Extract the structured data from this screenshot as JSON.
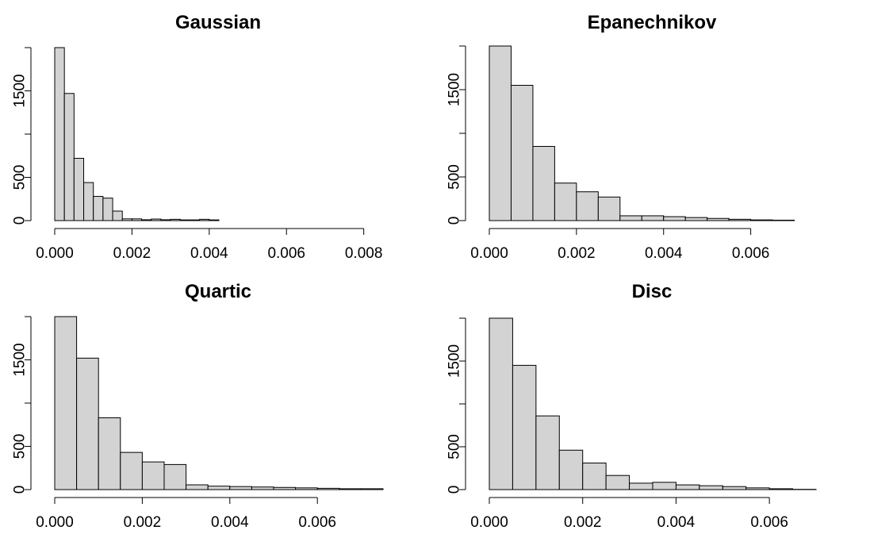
{
  "chart_data": [
    {
      "type": "bar",
      "title": "Gaussian",
      "xlabel": "",
      "ylabel": "",
      "bin_width": 0.00025,
      "xlim": [
        0,
        0.0085
      ],
      "ylim": [
        0,
        2000
      ],
      "x_ticks": [
        0,
        0.002,
        0.004,
        0.006,
        0.008
      ],
      "x_tick_labels": [
        "0.000",
        "0.002",
        "0.004",
        "0.006",
        "0.008"
      ],
      "y_ticks": [
        0,
        500,
        1000,
        1500,
        2000
      ],
      "y_tick_labels": [
        "0",
        "500",
        "",
        "1500",
        ""
      ],
      "values": [
        2000,
        1470,
        720,
        440,
        280,
        260,
        110,
        20,
        20,
        10,
        18,
        10,
        15,
        8,
        8,
        15,
        8
      ]
    },
    {
      "type": "bar",
      "title": "Epanechnikov",
      "xlabel": "",
      "ylabel": "",
      "bin_width": 0.0005,
      "xlim": [
        0,
        0.0075
      ],
      "ylim": [
        0,
        2000
      ],
      "x_ticks": [
        0,
        0.002,
        0.004,
        0.006
      ],
      "x_tick_labels": [
        "0.000",
        "0.002",
        "0.004",
        "0.006"
      ],
      "y_ticks": [
        0,
        500,
        1000,
        1500,
        2000
      ],
      "y_tick_labels": [
        "0",
        "500",
        "",
        "1500",
        ""
      ],
      "values": [
        2000,
        1550,
        850,
        430,
        330,
        270,
        55,
        55,
        45,
        35,
        25,
        15,
        8,
        5
      ]
    },
    {
      "type": "bar",
      "title": "Quartic",
      "xlabel": "",
      "ylabel": "",
      "bin_width": 0.0005,
      "xlim": [
        0,
        0.0075
      ],
      "ylim": [
        0,
        2000
      ],
      "x_ticks": [
        0,
        0.002,
        0.004,
        0.006
      ],
      "x_tick_labels": [
        "0.000",
        "0.002",
        "0.004",
        "0.006"
      ],
      "y_ticks": [
        0,
        500,
        1000,
        1500,
        2000
      ],
      "y_tick_labels": [
        "0",
        "500",
        "",
        "1500",
        ""
      ],
      "values": [
        2000,
        1520,
        830,
        430,
        320,
        290,
        55,
        40,
        35,
        30,
        25,
        20,
        15,
        10,
        10
      ]
    },
    {
      "type": "bar",
      "title": "Disc",
      "xlabel": "",
      "ylabel": "",
      "bin_width": 0.0005,
      "xlim": [
        0,
        0.007
      ],
      "ylim": [
        0,
        2000
      ],
      "x_ticks": [
        0,
        0.002,
        0.004,
        0.006
      ],
      "x_tick_labels": [
        "0.000",
        "0.002",
        "0.004",
        "0.006"
      ],
      "y_ticks": [
        0,
        500,
        1000,
        1500,
        2000
      ],
      "y_tick_labels": [
        "0",
        "500",
        "",
        "1500",
        ""
      ],
      "values": [
        2000,
        1450,
        860,
        460,
        310,
        165,
        75,
        85,
        55,
        45,
        35,
        20,
        10,
        3
      ]
    }
  ]
}
